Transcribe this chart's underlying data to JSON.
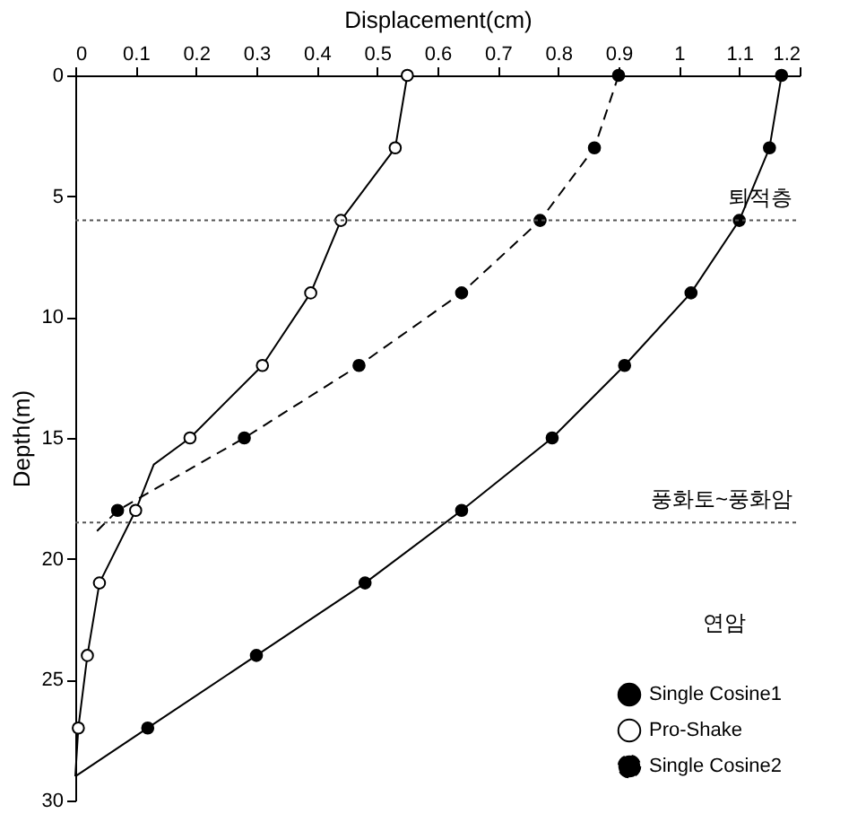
{
  "chart_data": {
    "type": "line",
    "xlabel": "Displacement(cm)",
    "ylabel": "Depth(m)",
    "xlim": [
      0,
      1.2
    ],
    "xticks": [
      0,
      0.1,
      0.2,
      0.3,
      0.4,
      0.5,
      0.6,
      0.7,
      0.8,
      0.9,
      1,
      1.1,
      1.2
    ],
    "ylim": [
      30,
      0
    ],
    "yticks": [
      0,
      5,
      10,
      15,
      20,
      25,
      30
    ],
    "grid": false,
    "legend": "bottom right",
    "series": [
      {
        "name": "Single Cosine1",
        "color": "#000000",
        "marker": "circle",
        "line_style": "solid",
        "x": [
          1.17,
          1.15,
          1.1,
          1.02,
          0.91,
          0.79,
          0.64,
          0.48,
          0.3,
          0.12,
          0
        ],
        "values": [
          0,
          3,
          6,
          9,
          12,
          15,
          18,
          21,
          24,
          27,
          29
        ]
      },
      {
        "name": "Pro-Shake",
        "color": "#000000",
        "marker": "circle_open",
        "line_style": "solid",
        "x": [
          0.55,
          0.53,
          0.44,
          0.39,
          0.31,
          0.19,
          0.13,
          0.1,
          0.04,
          0.02,
          0.005,
          0
        ],
        "values": [
          0,
          3,
          6,
          9,
          12,
          15,
          16.1,
          18,
          21,
          24,
          27,
          29
        ]
      },
      {
        "name": "Single Cosine2",
        "color": "#000000",
        "marker": "circle",
        "line_style": "dashed",
        "x": [
          0.9,
          0.86,
          0.77,
          0.64,
          0.47,
          0.28,
          0.07,
          0.03
        ],
        "values": [
          0,
          3,
          6,
          9,
          12,
          15,
          18,
          19
        ]
      }
    ],
    "ref_lines": [
      {
        "axis": "y",
        "value": 6,
        "label": "퇴적층",
        "line_style": "dotted",
        "color": "#555555"
      },
      {
        "axis": "y",
        "value": 18.5,
        "label": "풍화토~풍화암",
        "line_style": "dotted",
        "color": "#555555"
      }
    ],
    "annotations": [
      "연암"
    ]
  }
}
